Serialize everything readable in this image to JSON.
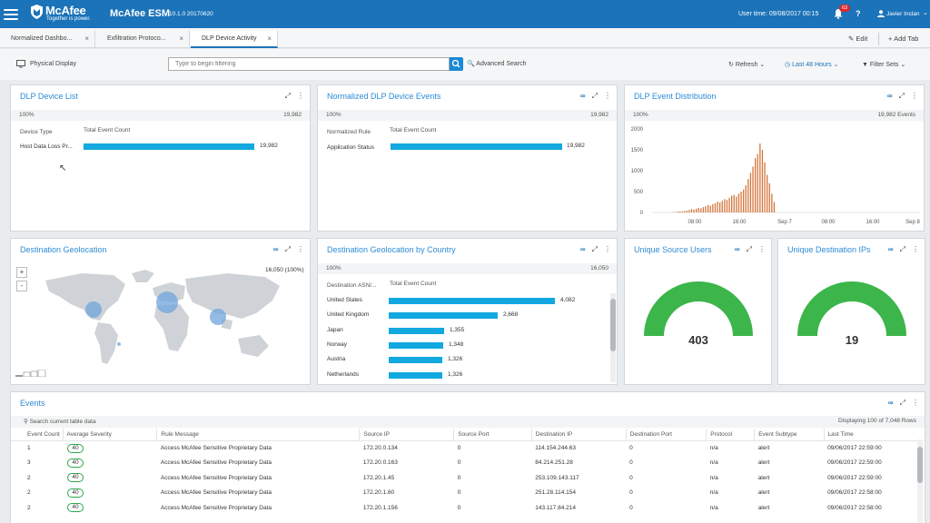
{
  "header": {
    "brand": "McAfee",
    "tagline": "Together is power.",
    "product": "McAfee ESM",
    "version": "10.1.0 20170620",
    "user_time": "User time: 09/08/2017 00:15",
    "notification_count": "63",
    "help_label": "?",
    "username": "Javier Inclan",
    "brand_color": "#1b73b9"
  },
  "tabs": [
    {
      "label": "Normalized Dashbo..."
    },
    {
      "label": "Exfiltration Protoco..."
    },
    {
      "label": "DLP Device Activity"
    }
  ],
  "tab_actions": {
    "edit": "Edit",
    "add": "Add Tab"
  },
  "toolbar": {
    "display_label": "Physical Display",
    "filter_placeholder": "Type to begin filtering",
    "advanced_search": "Advanced Search",
    "refresh": "Refresh",
    "time_range": "Last 48 Hours",
    "filter_sets": "Filter Sets"
  },
  "panels": {
    "dlp_device_list": {
      "title": "DLP Device List",
      "percent": "100%",
      "total": "19,982",
      "col1": "Device Type",
      "col2": "Total Event Count",
      "rows": [
        {
          "label": "Host Data Loss Pr...",
          "value": 19982,
          "display": "19,982"
        }
      ]
    },
    "normalized_dlp_events": {
      "title": "Normalized DLP Device Events",
      "percent": "100%",
      "total": "19,982",
      "col1": "Normalized Rule",
      "col2": "Total Event Count",
      "rows": [
        {
          "label": "Application Status",
          "value": 19982,
          "display": "19,982"
        }
      ]
    },
    "dlp_event_distribution": {
      "title": "DLP Event Distribution",
      "percent": "100%",
      "total": "19,982 Events"
    },
    "destination_geolocation": {
      "title": "Destination Geolocation",
      "summary": "16,050 (100%)",
      "zoom_in": "+",
      "zoom_out": "-"
    },
    "geo_by_country": {
      "title": "Destination Geolocation by Country",
      "percent": "100%",
      "total": "16,050",
      "col1": "Destination ASN/...",
      "col2": "Total Event Count",
      "rows": [
        {
          "label": "United States",
          "value": 4082,
          "display": "4,082"
        },
        {
          "label": "United Kingdom",
          "value": 2668,
          "display": "2,668"
        },
        {
          "label": "Japan",
          "value": 1355,
          "display": "1,355"
        },
        {
          "label": "Norway",
          "value": 1348,
          "display": "1,348"
        },
        {
          "label": "Austria",
          "value": 1326,
          "display": "1,326"
        },
        {
          "label": "Netherlands",
          "value": 1326,
          "display": "1,326"
        }
      ]
    },
    "unique_source_users": {
      "title": "Unique Source Users",
      "value": "403",
      "gauge_color": "#3cb54a"
    },
    "unique_destination_ips": {
      "title": "Unique Destination IPs",
      "value": "19",
      "gauge_color": "#3cb54a"
    }
  },
  "chart_data": {
    "type": "bar",
    "title": "DLP Event Distribution",
    "y_ticks": [
      "2000",
      "1500",
      "1000",
      "500",
      "0"
    ],
    "ylim": [
      0,
      2000
    ],
    "x_tick_labels": [
      "08:00",
      "16:00",
      "Sep 7",
      "08:00",
      "16:00",
      "Sep 8"
    ],
    "bar_color": "#d5763c",
    "values": [
      5,
      12,
      20,
      25,
      30,
      35,
      45,
      60,
      80,
      70,
      90,
      110,
      100,
      130,
      150,
      180,
      160,
      200,
      220,
      260,
      240,
      280,
      320,
      300,
      350,
      400,
      420,
      380,
      450,
      500,
      550,
      650,
      800,
      950,
      1100,
      1300,
      1400,
      1650,
      1500,
      1200,
      900,
      700,
      450,
      250
    ]
  },
  "events": {
    "title": "Events",
    "search_placeholder": "Search current table data",
    "displaying": "Displaying 100 of 7,048 Rows",
    "columns": [
      "Event Count",
      "Average Severity",
      "Rule Message",
      "Source IP",
      "Source Port",
      "Destination IP",
      "Destination Port",
      "Protocol",
      "Event Subtype",
      "Last Time"
    ],
    "rows": [
      [
        "1",
        "40",
        "Access McAfee Sensitive Proprietary Data",
        "172.20.0.134",
        "0",
        "114.154.244.63",
        "0",
        "n/a",
        "alert",
        "09/06/2017 22:59:00"
      ],
      [
        "3",
        "40",
        "Access McAfee Sensitive Proprietary Data",
        "172.20.0.163",
        "0",
        "84.214.251.28",
        "0",
        "n/a",
        "alert",
        "09/06/2017 22:59:00"
      ],
      [
        "2",
        "40",
        "Access McAfee Sensitive Proprietary Data",
        "172.20.1.45",
        "0",
        "253.109.143.117",
        "0",
        "n/a",
        "alert",
        "09/06/2017 22:59:00"
      ],
      [
        "2",
        "40",
        "Access McAfee Sensitive Proprietary Data",
        "172.20.1.60",
        "0",
        "251.28.114.154",
        "0",
        "n/a",
        "alert",
        "09/06/2017 22:58:00"
      ],
      [
        "2",
        "40",
        "Access McAfee Sensitive Proprietary Data",
        "172.20.1.156",
        "0",
        "143.117.84.214",
        "0",
        "n/a",
        "alert",
        "09/06/2017 22:58:00"
      ]
    ]
  }
}
